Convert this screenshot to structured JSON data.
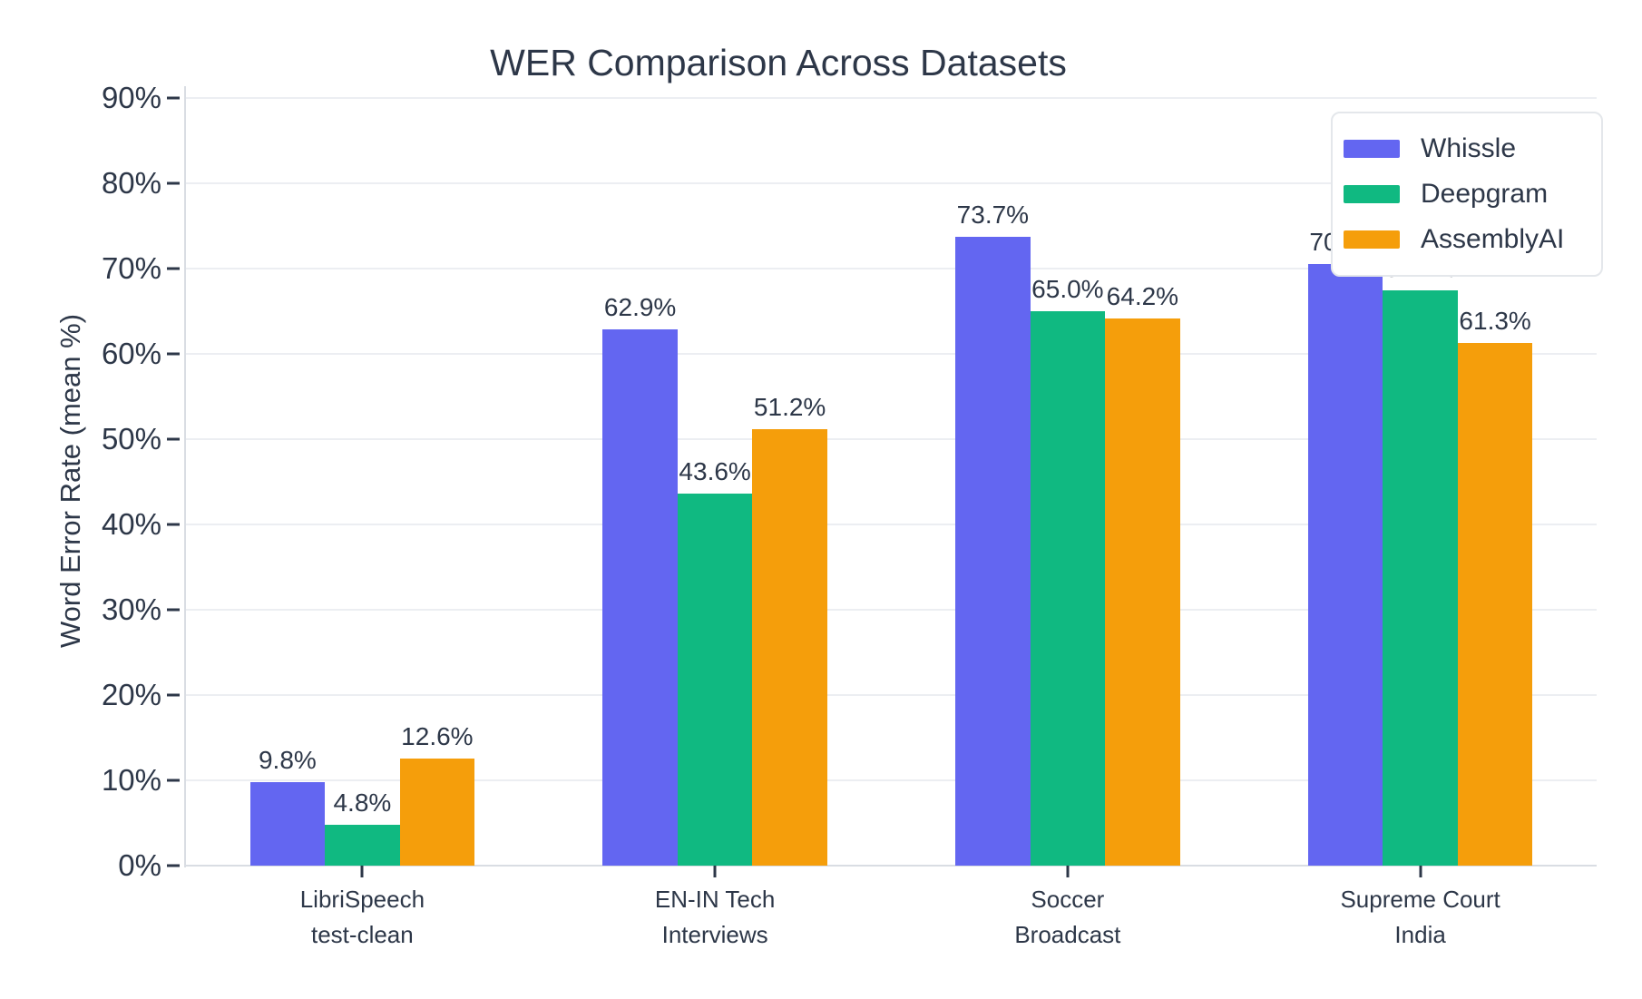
{
  "chart_data": {
    "type": "bar",
    "title": "WER Comparison Across Datasets",
    "xlabel": "",
    "ylabel": "Word Error Rate (mean %)",
    "ylim": [
      0,
      90
    ],
    "grid": true,
    "legend_position": "top-right",
    "background_color": "#ffffff",
    "text_color": "#2d3748",
    "gridline_color": "#eceef2",
    "categories": [
      "LibriSpeech\ntest-clean",
      "EN-IN Tech\nInterviews",
      "Soccer\nBroadcast",
      "Supreme Court\nIndia"
    ],
    "ytick_values": [
      0,
      10,
      20,
      30,
      40,
      50,
      60,
      70,
      80,
      90
    ],
    "ytick_labels": [
      "0%",
      "10%",
      "20%",
      "30%",
      "40%",
      "50%",
      "60%",
      "70%",
      "80%",
      "90%"
    ],
    "series": [
      {
        "name": "Whissle",
        "color": "#6366F1",
        "values": [
          9.8,
          62.9,
          73.7,
          70.5
        ],
        "value_labels": [
          "9.8%",
          "62.9%",
          "73.7%",
          "70.5%"
        ]
      },
      {
        "name": "Deepgram",
        "color": "#10B981",
        "values": [
          4.8,
          43.6,
          65.0,
          67.4
        ],
        "value_labels": [
          "4.8%",
          "43.6%",
          "65.0%",
          "67.4%"
        ]
      },
      {
        "name": "AssemblyAI",
        "color": "#F59E0B",
        "values": [
          12.6,
          51.2,
          64.2,
          61.3
        ],
        "value_labels": [
          "12.6%",
          "51.2%",
          "64.2%",
          "61.3%"
        ]
      }
    ]
  }
}
